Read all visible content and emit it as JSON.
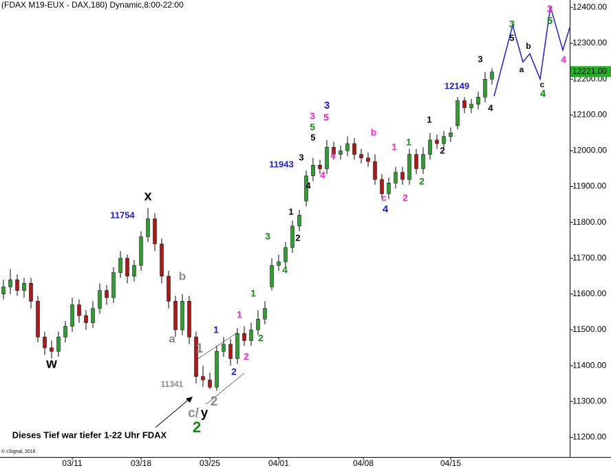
{
  "chart_data": {
    "type": "candlestick",
    "title": "(FDAX M19-EUX - DAX,180) Dynamic,8:00-22:00",
    "copyright": "© cSignal, 2016",
    "up_color": "#2e9e2e",
    "down_color": "#b01818",
    "open": [
      11600,
      11620,
      11640,
      11610,
      11630,
      11580,
      11480,
      11450,
      11440,
      11480,
      11510,
      11570,
      11540,
      11520,
      11560,
      11610,
      11590,
      11660,
      11700,
      11650,
      11680,
      11760,
      11810,
      11740,
      11650,
      11580,
      11500,
      11580,
      11480,
      11370,
      11360,
      11340,
      11440,
      11460,
      11420,
      11490,
      11470,
      11500,
      11530,
      11620,
      11680,
      11690,
      11730,
      11790,
      11860,
      11930,
      11960,
      11950,
      12010,
      11990,
      12000,
      12020,
      11990,
      11980,
      11970,
      11920,
      11880,
      11910,
      11940,
      11920,
      11990,
      11950,
      11990,
      12030,
      12020,
      12040,
      12070,
      12140,
      12120,
      12130,
      12150,
      12200
    ],
    "high": [
      11640,
      11670,
      11655,
      11645,
      11645,
      11595,
      11495,
      11470,
      11495,
      11525,
      11590,
      11585,
      11555,
      11580,
      11630,
      11625,
      11675,
      11720,
      11710,
      11695,
      11775,
      11840,
      11825,
      11755,
      11665,
      11595,
      11600,
      11595,
      11495,
      11400,
      11380,
      11455,
      11480,
      11475,
      11505,
      11510,
      11520,
      11555,
      11580,
      11700,
      11710,
      11745,
      11805,
      11835,
      11945,
      11980,
      11975,
      12030,
      12025,
      12015,
      12040,
      12035,
      12005,
      11995,
      11990,
      11935,
      11925,
      11955,
      11955,
      12005,
      12005,
      12010,
      12050,
      12045,
      12055,
      12065,
      12150,
      12150,
      12145,
      12165,
      12220,
      12230
    ],
    "low": [
      11585,
      11600,
      11595,
      11590,
      11560,
      11465,
      11430,
      11420,
      11425,
      11465,
      11495,
      11520,
      11500,
      11505,
      11545,
      11570,
      11575,
      11645,
      11630,
      11635,
      11665,
      11745,
      11720,
      11630,
      11560,
      11480,
      11485,
      11460,
      11350,
      11341,
      11335,
      11330,
      11425,
      11400,
      11405,
      11455,
      11455,
      11485,
      11515,
      11610,
      11665,
      11675,
      11715,
      11775,
      11845,
      11915,
      11935,
      11935,
      11975,
      11975,
      11985,
      11975,
      11965,
      11955,
      11905,
      11865,
      11865,
      11895,
      11905,
      11905,
      11935,
      11935,
      11975,
      12005,
      12005,
      12025,
      12060,
      12105,
      12105,
      12115,
      12135,
      12185
    ],
    "close": [
      11620,
      11640,
      11610,
      11630,
      11580,
      11480,
      11450,
      11440,
      11480,
      11510,
      11570,
      11540,
      11520,
      11560,
      11610,
      11590,
      11660,
      11700,
      11650,
      11680,
      11760,
      11810,
      11740,
      11650,
      11580,
      11500,
      11580,
      11480,
      11370,
      11360,
      11340,
      11440,
      11460,
      11420,
      11490,
      11470,
      11500,
      11530,
      11560,
      11680,
      11690,
      11730,
      11790,
      11820,
      11930,
      11960,
      11950,
      12010,
      11990,
      12000,
      12020,
      11990,
      11980,
      11970,
      11920,
      11880,
      11910,
      11940,
      11920,
      11990,
      11950,
      11990,
      12030,
      12020,
      12040,
      12050,
      12140,
      12120,
      12130,
      12150,
      12200,
      12220
    ],
    "xlim": [
      -0.5,
      82.3
    ],
    "xticks": [
      {
        "value": 10,
        "label": "03/11"
      },
      {
        "value": 20,
        "label": "03/18"
      },
      {
        "value": 30,
        "label": "03/25"
      },
      {
        "value": 40,
        "label": "04/01"
      },
      {
        "value": 52.3,
        "label": "04/08"
      },
      {
        "value": 65,
        "label": "04/15"
      }
    ],
    "ylim": [
      11145,
      12421
    ],
    "yticks": [
      {
        "value": 11200,
        "label": "11200.00"
      },
      {
        "value": 11300,
        "label": "11300.00"
      },
      {
        "value": 11400,
        "label": "11400.00"
      },
      {
        "value": 11500,
        "label": "11500.00"
      },
      {
        "value": 11600,
        "label": "11600.00"
      },
      {
        "value": 11700,
        "label": "11700.00"
      },
      {
        "value": 11800,
        "label": "11800.00"
      },
      {
        "value": 11900,
        "label": "11900.00"
      },
      {
        "value": 12000,
        "label": "12000.00"
      },
      {
        "value": 12100,
        "label": "12100.00"
      },
      {
        "value": 12200,
        "label": "12200.00"
      },
      {
        "value": 12300,
        "label": "12300.00"
      },
      {
        "value": 12400,
        "label": "12400.00"
      }
    ],
    "last_price": {
      "value": 12221,
      "label": "12221.00",
      "color": "#22b322"
    },
    "projection": {
      "color": "#1a1ae6",
      "x": [
        71.3,
        74,
        75.5,
        76.5,
        78,
        79.5,
        81.3,
        82.3
      ],
      "values": [
        12152,
        12350,
        12248,
        12271,
        12200,
        12402,
        12281,
        12344
      ]
    },
    "annotations": [
      {
        "text": "w",
        "color": "#000000"
      },
      {
        "text": "x",
        "color": "#000000"
      },
      {
        "text": "11754",
        "color": "#1a1ae6"
      },
      {
        "text": "b",
        "color": "#8c8c8c"
      },
      {
        "text": "a",
        "color": "#8c8c8c"
      },
      {
        "text": "1",
        "color": "#8c8c8c"
      },
      {
        "text": "2",
        "color": "#8c8c8c"
      },
      {
        "text": "11341",
        "color": "#8c8c8c"
      },
      {
        "text": "c/",
        "color": "#8c8c8c"
      },
      {
        "text": "y",
        "color": "#000000"
      },
      {
        "text": "2",
        "color": "#138a13"
      },
      {
        "text": "Dieses Tief war tiefer 1-22 Uhr FDAX",
        "color": "#000000"
      },
      {
        "text": "1",
        "color": "#1a1ae6"
      },
      {
        "text": "2",
        "color": "#1a1ae6"
      },
      {
        "text": "1",
        "color": "#ff22cc"
      },
      {
        "text": "2",
        "color": "#ff22cc"
      },
      {
        "text": "1",
        "color": "#138a13"
      },
      {
        "text": "2",
        "color": "#138a13"
      },
      {
        "text": "3",
        "color": "#138a13"
      },
      {
        "text": "1",
        "color": "#000000"
      },
      {
        "text": "2",
        "color": "#000000"
      },
      {
        "text": "4",
        "color": "#138a13"
      },
      {
        "text": "3",
        "color": "#000000"
      },
      {
        "text": "4",
        "color": "#000000"
      },
      {
        "text": "5",
        "color": "#000000"
      },
      {
        "text": "5",
        "color": "#138a13"
      },
      {
        "text": "3",
        "color": "#ff22cc"
      },
      {
        "text": "3",
        "color": "#1a1ae6"
      },
      {
        "text": "5",
        "color": "#ff22cc"
      },
      {
        "text": "4",
        "color": "#ff22cc"
      },
      {
        "text": "a",
        "color": "#ff22cc"
      },
      {
        "text": "11943",
        "color": "#1a1ae6"
      },
      {
        "text": "b",
        "color": "#ff22cc"
      },
      {
        "text": "c",
        "color": "#ff22cc"
      },
      {
        "text": "4",
        "color": "#1a1ae6"
      },
      {
        "text": "1",
        "color": "#ff22cc"
      },
      {
        "text": "2",
        "color": "#ff22cc"
      },
      {
        "text": "1",
        "color": "#138a13"
      },
      {
        "text": "2",
        "color": "#138a13"
      },
      {
        "text": "1",
        "color": "#000000"
      },
      {
        "text": "2",
        "color": "#000000"
      },
      {
        "text": "12149",
        "color": "#1a1ae6"
      },
      {
        "text": "3",
        "color": "#000000"
      },
      {
        "text": "4",
        "color": "#000000"
      },
      {
        "text": "3",
        "color": "#138a13"
      },
      {
        "text": "5",
        "color": "#000000"
      },
      {
        "text": "b",
        "color": "#000000"
      },
      {
        "text": "a",
        "color": "#000000"
      },
      {
        "text": "c",
        "color": "#000000"
      },
      {
        "text": "4",
        "color": "#138a13"
      },
      {
        "text": "3",
        "color": "#ff22cc"
      },
      {
        "text": "5",
        "color": "#138a13"
      },
      {
        "text": "4",
        "color": "#ff22cc"
      }
    ]
  }
}
